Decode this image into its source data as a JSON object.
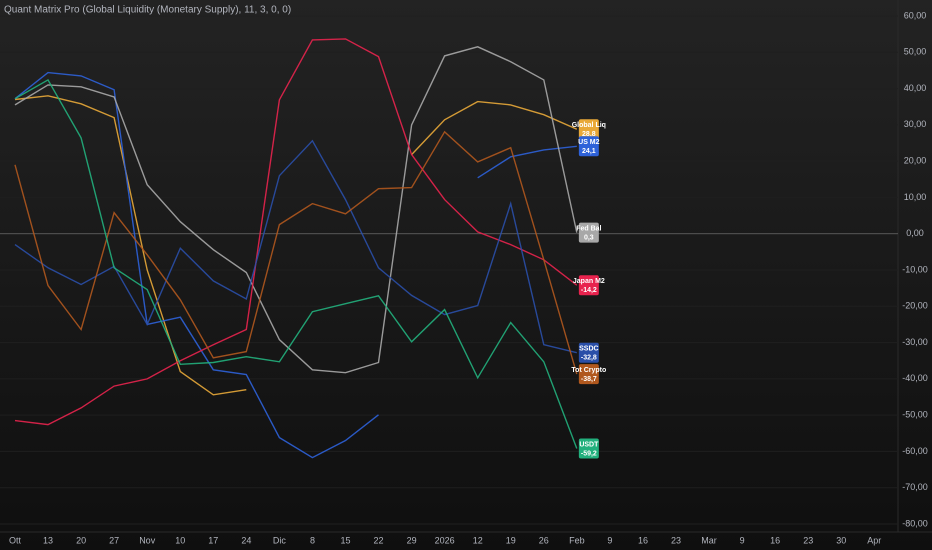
{
  "chart_data": {
    "type": "line",
    "title": "Quant Matrix Pro (Global Liquidity (Monetary Supply), 11, 3, 0, 0)",
    "categories": [
      "Ott",
      "13",
      "20",
      "27",
      "Nov",
      "10",
      "17",
      "24",
      "Dic",
      "8",
      "15",
      "22",
      "29",
      "2026",
      "12",
      "19",
      "26",
      "Feb",
      "9",
      "16",
      "23",
      "Mar",
      "9",
      "16",
      "23",
      "30",
      "Apr"
    ],
    "ylim": [
      -80,
      60
    ],
    "yticks": [
      {
        "value": 60,
        "label": "60,00"
      },
      {
        "value": 50,
        "label": "50,00"
      },
      {
        "value": 40,
        "label": "40,00"
      },
      {
        "value": 30,
        "label": "30,00"
      },
      {
        "value": 20,
        "label": "20,00"
      },
      {
        "value": 10,
        "label": "10,00"
      },
      {
        "value": 0,
        "label": "0,00"
      },
      {
        "value": -10,
        "label": "-10,00"
      },
      {
        "value": -20,
        "label": "-20,00"
      },
      {
        "value": -30,
        "label": "-30,00"
      },
      {
        "value": -40,
        "label": "-40,00"
      },
      {
        "value": -50,
        "label": "-50,00"
      },
      {
        "value": -60,
        "label": "-60,00"
      },
      {
        "value": -70,
        "label": "-70,00"
      },
      {
        "value": -80,
        "label": "-80,00"
      }
    ],
    "grid": true,
    "zero_line": true,
    "series": [
      {
        "name": "Global Liq",
        "color": "#e8a838",
        "values": [
          37,
          38,
          35.8,
          32,
          -10,
          -38,
          -44.4,
          -43,
          null,
          null,
          null,
          null,
          21.8,
          31.4,
          36.4,
          35.5,
          32.8,
          28.8,
          null,
          null,
          null,
          null,
          null,
          null,
          null,
          null,
          null
        ],
        "value_labels": [
          null,
          null,
          null,
          null,
          null,
          null,
          null,
          null,
          null,
          null,
          null,
          null,
          null,
          null,
          null,
          null,
          null,
          "28,8",
          null,
          null,
          null,
          null,
          null,
          null,
          null,
          null,
          null
        ]
      },
      {
        "name": "US M2",
        "color": "#2e62d9",
        "values": [
          37.2,
          44.4,
          43.5,
          39.7,
          -25,
          -23,
          -37.5,
          -38.8,
          -56.2,
          -61.7,
          -57,
          -49.9,
          null,
          null,
          15.4,
          21.2,
          23.1,
          24.1,
          null,
          null,
          null,
          null,
          null,
          null,
          null,
          null,
          null
        ],
        "value_labels": [
          null,
          null,
          null,
          null,
          null,
          null,
          null,
          null,
          null,
          null,
          null,
          null,
          null,
          null,
          null,
          null,
          null,
          "24,1",
          null,
          null,
          null,
          null,
          null,
          null,
          null,
          null,
          null
        ]
      },
      {
        "name": "Fed Bal",
        "color": "#a8a8a8",
        "values": [
          35.5,
          41,
          40.5,
          37.7,
          13.5,
          3.3,
          -4.4,
          -10.7,
          -29.2,
          -37.5,
          -38.3,
          -35.5,
          30,
          49,
          51.5,
          47.4,
          42.4,
          0.3,
          null,
          null,
          null,
          null,
          null,
          null,
          null,
          null,
          null
        ],
        "value_labels": [
          null,
          null,
          null,
          null,
          null,
          null,
          null,
          null,
          null,
          null,
          null,
          null,
          null,
          null,
          null,
          null,
          null,
          "0,3",
          null,
          null,
          null,
          null,
          null,
          null,
          null,
          null,
          null
        ]
      },
      {
        "name": "Japan M2",
        "color": "#e8234e",
        "values": [
          -51.5,
          -52.6,
          -48,
          -42,
          -40,
          -35,
          -30.6,
          -26.4,
          36.9,
          53.4,
          53.7,
          48.8,
          21.8,
          9.4,
          0.5,
          -3,
          -7.2,
          -14.2,
          null,
          null,
          null,
          null,
          null,
          null,
          null,
          null,
          null
        ],
        "value_labels": [
          null,
          null,
          null,
          null,
          null,
          null,
          null,
          null,
          null,
          null,
          null,
          null,
          null,
          null,
          null,
          null,
          null,
          "-14,2",
          null,
          null,
          null,
          null,
          null,
          null,
          null,
          null,
          null
        ]
      },
      {
        "name": "SSDC",
        "color": "#2a4fa8",
        "values": [
          -3,
          -9.4,
          -14,
          -9,
          -25,
          -4,
          -13,
          -18,
          16,
          25.6,
          9.4,
          -9.4,
          -17,
          -22.3,
          -19.8,
          8.3,
          -30.6,
          -32.8,
          null,
          null,
          null,
          null,
          null,
          null,
          null,
          null,
          null
        ],
        "value_labels": [
          null,
          null,
          null,
          null,
          null,
          null,
          null,
          null,
          null,
          null,
          null,
          null,
          null,
          null,
          null,
          null,
          null,
          "-32,8",
          null,
          null,
          null,
          null,
          null,
          null,
          null,
          null,
          null
        ]
      },
      {
        "name": "Tot Crypto",
        "color": "#b0581e",
        "values": [
          19,
          -14.3,
          -26.4,
          5.8,
          -5.8,
          -18.2,
          -34.2,
          -32.5,
          2.5,
          8.3,
          5.5,
          12.4,
          12.7,
          28.1,
          19.8,
          23.7,
          -7.2,
          -38.7,
          null,
          null,
          null,
          null,
          null,
          null,
          null,
          null,
          null
        ],
        "value_labels": [
          null,
          null,
          null,
          null,
          null,
          null,
          null,
          null,
          null,
          null,
          null,
          null,
          null,
          null,
          null,
          null,
          null,
          "-38,7",
          null,
          null,
          null,
          null,
          null,
          null,
          null,
          null,
          null
        ]
      },
      {
        "name": "USDT",
        "color": "#22b07d",
        "values": [
          37.2,
          42.4,
          26.4,
          -9.4,
          -15.4,
          -36,
          -35.5,
          -33.9,
          -35.3,
          -21.5,
          -19.3,
          -17.1,
          -29.8,
          -20.9,
          -39.7,
          -24.5,
          -35.3,
          -59.2,
          null,
          null,
          null,
          null,
          null,
          null,
          null,
          null,
          null
        ],
        "value_labels": [
          null,
          null,
          null,
          null,
          null,
          null,
          null,
          null,
          null,
          null,
          null,
          null,
          null,
          null,
          null,
          null,
          null,
          "-59,2",
          null,
          null,
          null,
          null,
          null,
          null,
          null,
          null,
          null
        ]
      }
    ]
  }
}
